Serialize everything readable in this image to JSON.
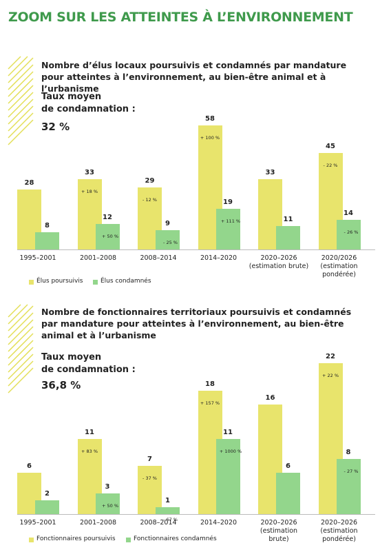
{
  "title": "ZOOM SUR LES ATTEINTES À L’ENVIRONNEMENT",
  "chart_data": [
    {
      "type": "bar",
      "title": "Nombre d’élus locaux poursuivis et condamnés par mandature pour atteintes à l’environnement, au bien-être animal et à l’urbanisme",
      "annotations": [
        "Taux moyen\nde condamnation :",
        "32 %"
      ],
      "categories": [
        "1995–2001",
        "2001–2008",
        "2008–2014",
        "2014–2020",
        "2020–2026\n(estimation brute)",
        "2020/2026\n(estimation\npondérée)"
      ],
      "series": [
        {
          "name": "Élus poursuivis",
          "color": "#e8e46c",
          "values": [
            28,
            33,
            29,
            58,
            33,
            45
          ],
          "change_labels": [
            null,
            "+ 18 %",
            "- 12 %",
            "+ 100 %",
            null,
            "- 22 %"
          ]
        },
        {
          "name": "Élus condamnés",
          "color": "#93d68c",
          "values": [
            8,
            12,
            9,
            19,
            11,
            14
          ],
          "change_labels": [
            null,
            "+ 50 %",
            "- 25 %",
            "+ 111 %",
            null,
            "- 26 %"
          ]
        }
      ]
    },
    {
      "type": "bar",
      "title": "Nombre de fonctionnaires territoriaux poursuivis et condamnés par mandature pour atteintes à l’environnement, au bien-être animal et à l’urbanisme",
      "annotations": [
        "Taux moyen\nde condamnation :",
        "36,8 %"
      ],
      "categories": [
        "1995–2001",
        "2001–2008",
        "2008–2014",
        "2014–2020",
        "2020–2026\n(estimation\nbrute)",
        "2020–2026\n(estimation\npondérée)"
      ],
      "series": [
        {
          "name": "Fonctionnaires poursuivis",
          "color": "#e8e46c",
          "values": [
            6,
            11,
            7,
            18,
            16,
            22
          ],
          "change_labels": [
            null,
            "+ 83 %",
            "- 37 %",
            "+ 157 %",
            null,
            "+ 22 %"
          ]
        },
        {
          "name": "Fonctionnaires condamnés",
          "color": "#93d68c",
          "values": [
            2,
            3,
            1,
            11,
            6,
            8
          ],
          "change_labels": [
            null,
            "+ 50 %",
            "- 67 %",
            "+ 1000 %",
            null,
            "- 27 %"
          ]
        }
      ]
    }
  ]
}
